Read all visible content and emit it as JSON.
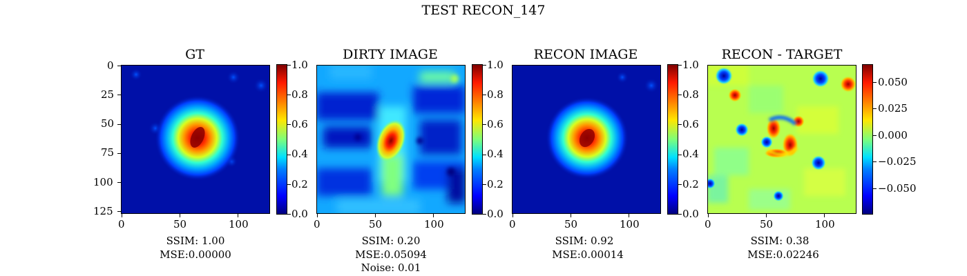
{
  "figure_title": "TEST RECON_147",
  "chart_data": [
    {
      "type": "heatmap",
      "title": "GT",
      "colormap": "jet",
      "x_ticks": [
        "0",
        "50",
        "100"
      ],
      "y_ticks": [
        "0",
        "25",
        "50",
        "75",
        "100",
        "125"
      ],
      "colorbar_ticks": [
        "0.0",
        "0.2",
        "0.4",
        "0.6",
        "0.8",
        "1.0"
      ],
      "colorbar_range": [
        0.0,
        1.0
      ],
      "metrics": [
        "SSIM: 1.00",
        "MSE:0.00000"
      ]
    },
    {
      "type": "heatmap",
      "title": "DIRTY IMAGE",
      "colormap": "jet",
      "x_ticks": [
        "0",
        "50",
        "100"
      ],
      "colorbar_ticks": [
        "0.0",
        "0.2",
        "0.4",
        "0.6",
        "0.8",
        "1.0"
      ],
      "colorbar_range": [
        0.0,
        1.0
      ],
      "metrics": [
        "SSIM: 0.20",
        "MSE:0.05094",
        "Noise: 0.01"
      ]
    },
    {
      "type": "heatmap",
      "title": "RECON IMAGE",
      "colormap": "jet",
      "x_ticks": [
        "0",
        "50",
        "100"
      ],
      "colorbar_ticks": [
        "0.0",
        "0.2",
        "0.4",
        "0.6",
        "0.8",
        "1.0"
      ],
      "colorbar_range": [
        0.0,
        1.0
      ],
      "metrics": [
        "SSIM: 0.92",
        "MSE:0.00014"
      ]
    },
    {
      "type": "heatmap",
      "title": "RECON - TARGET",
      "colormap": "jet",
      "x_ticks": [
        "0",
        "50",
        "100"
      ],
      "colorbar_ticks": [
        "0.050",
        "0.025",
        "0.000",
        "−0.025",
        "−0.050"
      ],
      "colorbar_range": [
        -0.065,
        0.065
      ],
      "metrics": [
        "SSIM: 0.38",
        "MSE:0.02246"
      ]
    }
  ]
}
